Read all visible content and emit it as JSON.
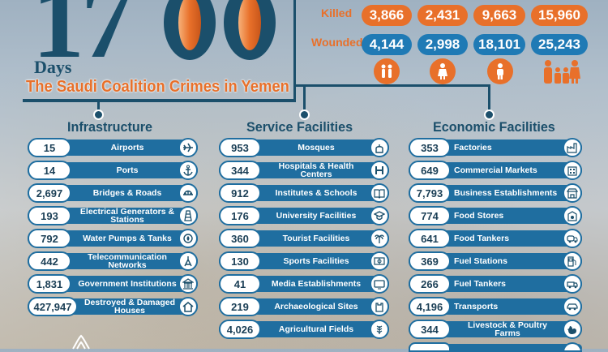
{
  "header": {
    "big_number": "1700",
    "days_label": "Days",
    "subtitle": "The Saudi Coalition Crimes in Yemen"
  },
  "casualties": {
    "killed_label": "Killed",
    "wounded_label": "Wounded",
    "killed": [
      "3,866",
      "2,431",
      "9,663",
      "15,960"
    ],
    "wounded": [
      "4,144",
      "2,998",
      "18,101",
      "25,243"
    ],
    "groups_icons": [
      "children-icon",
      "woman-icon",
      "man-icon",
      "family-icon"
    ]
  },
  "sections": {
    "infrastructure": {
      "title": "Infrastructure",
      "rows": [
        {
          "value": "15",
          "label": "Airports",
          "icon": "airplane-icon"
        },
        {
          "value": "14",
          "label": "Ports",
          "icon": "anchor-icon"
        },
        {
          "value": "2,697",
          "label": "Bridges & Roads",
          "icon": "bridge-icon"
        },
        {
          "value": "193",
          "label": "Electrical Generators & Stations",
          "icon": "generator-icon"
        },
        {
          "value": "792",
          "label": "Water Pumps & Tanks",
          "icon": "water-pump-icon"
        },
        {
          "value": "442",
          "label": "Telecommunication Networks",
          "icon": "antenna-icon"
        },
        {
          "value": "1,831",
          "label": "Government Institutions",
          "icon": "government-icon"
        },
        {
          "value": "427,947",
          "label": "Destroyed & Damaged Houses",
          "icon": "house-icon"
        }
      ]
    },
    "service": {
      "title": "Service Facilities",
      "rows": [
        {
          "value": "953",
          "label": "Mosques",
          "icon": "mosque-icon"
        },
        {
          "value": "344",
          "label": "Hospitals & Health Centers",
          "icon": "hospital-icon"
        },
        {
          "value": "912",
          "label": "Institutes & Schools",
          "icon": "book-icon"
        },
        {
          "value": "176",
          "label": "University Facilities",
          "icon": "graduation-cap-icon"
        },
        {
          "value": "360",
          "label": "Tourist Facilities",
          "icon": "palm-tree-icon"
        },
        {
          "value": "130",
          "label": "Sports Facilities",
          "icon": "sports-field-icon"
        },
        {
          "value": "41",
          "label": "Media Establishments",
          "icon": "tv-icon"
        },
        {
          "value": "219",
          "label": "Archaeological Sites",
          "icon": "castle-icon"
        },
        {
          "value": "4,026",
          "label": "Agricultural Fields",
          "icon": "wheat-icon"
        }
      ]
    },
    "economic": {
      "title": "Economic Facilities",
      "rows": [
        {
          "value": "353",
          "label": "Factories",
          "icon": "factory-icon"
        },
        {
          "value": "649",
          "label": "Commercial Markets",
          "icon": "market-icon"
        },
        {
          "value": "7,793",
          "label": "Business Establishments",
          "icon": "store-icon"
        },
        {
          "value": "774",
          "label": "Food Stores",
          "icon": "food-store-icon"
        },
        {
          "value": "641",
          "label": "Food Tankers",
          "icon": "tanker-truck-icon"
        },
        {
          "value": "369",
          "label": "Fuel Stations",
          "icon": "fuel-pump-icon"
        },
        {
          "value": "266",
          "label": "Fuel Tankers",
          "icon": "fuel-truck-icon"
        },
        {
          "value": "4,196",
          "label": "Transports",
          "icon": "car-icon"
        },
        {
          "value": "344",
          "label": "Livestock & Poultry Farms",
          "icon": "rooster-icon"
        }
      ]
    }
  },
  "colors": {
    "navy": "#1b4f6b",
    "orange": "#e8702a",
    "bar_blue": "#1f6ea0"
  }
}
